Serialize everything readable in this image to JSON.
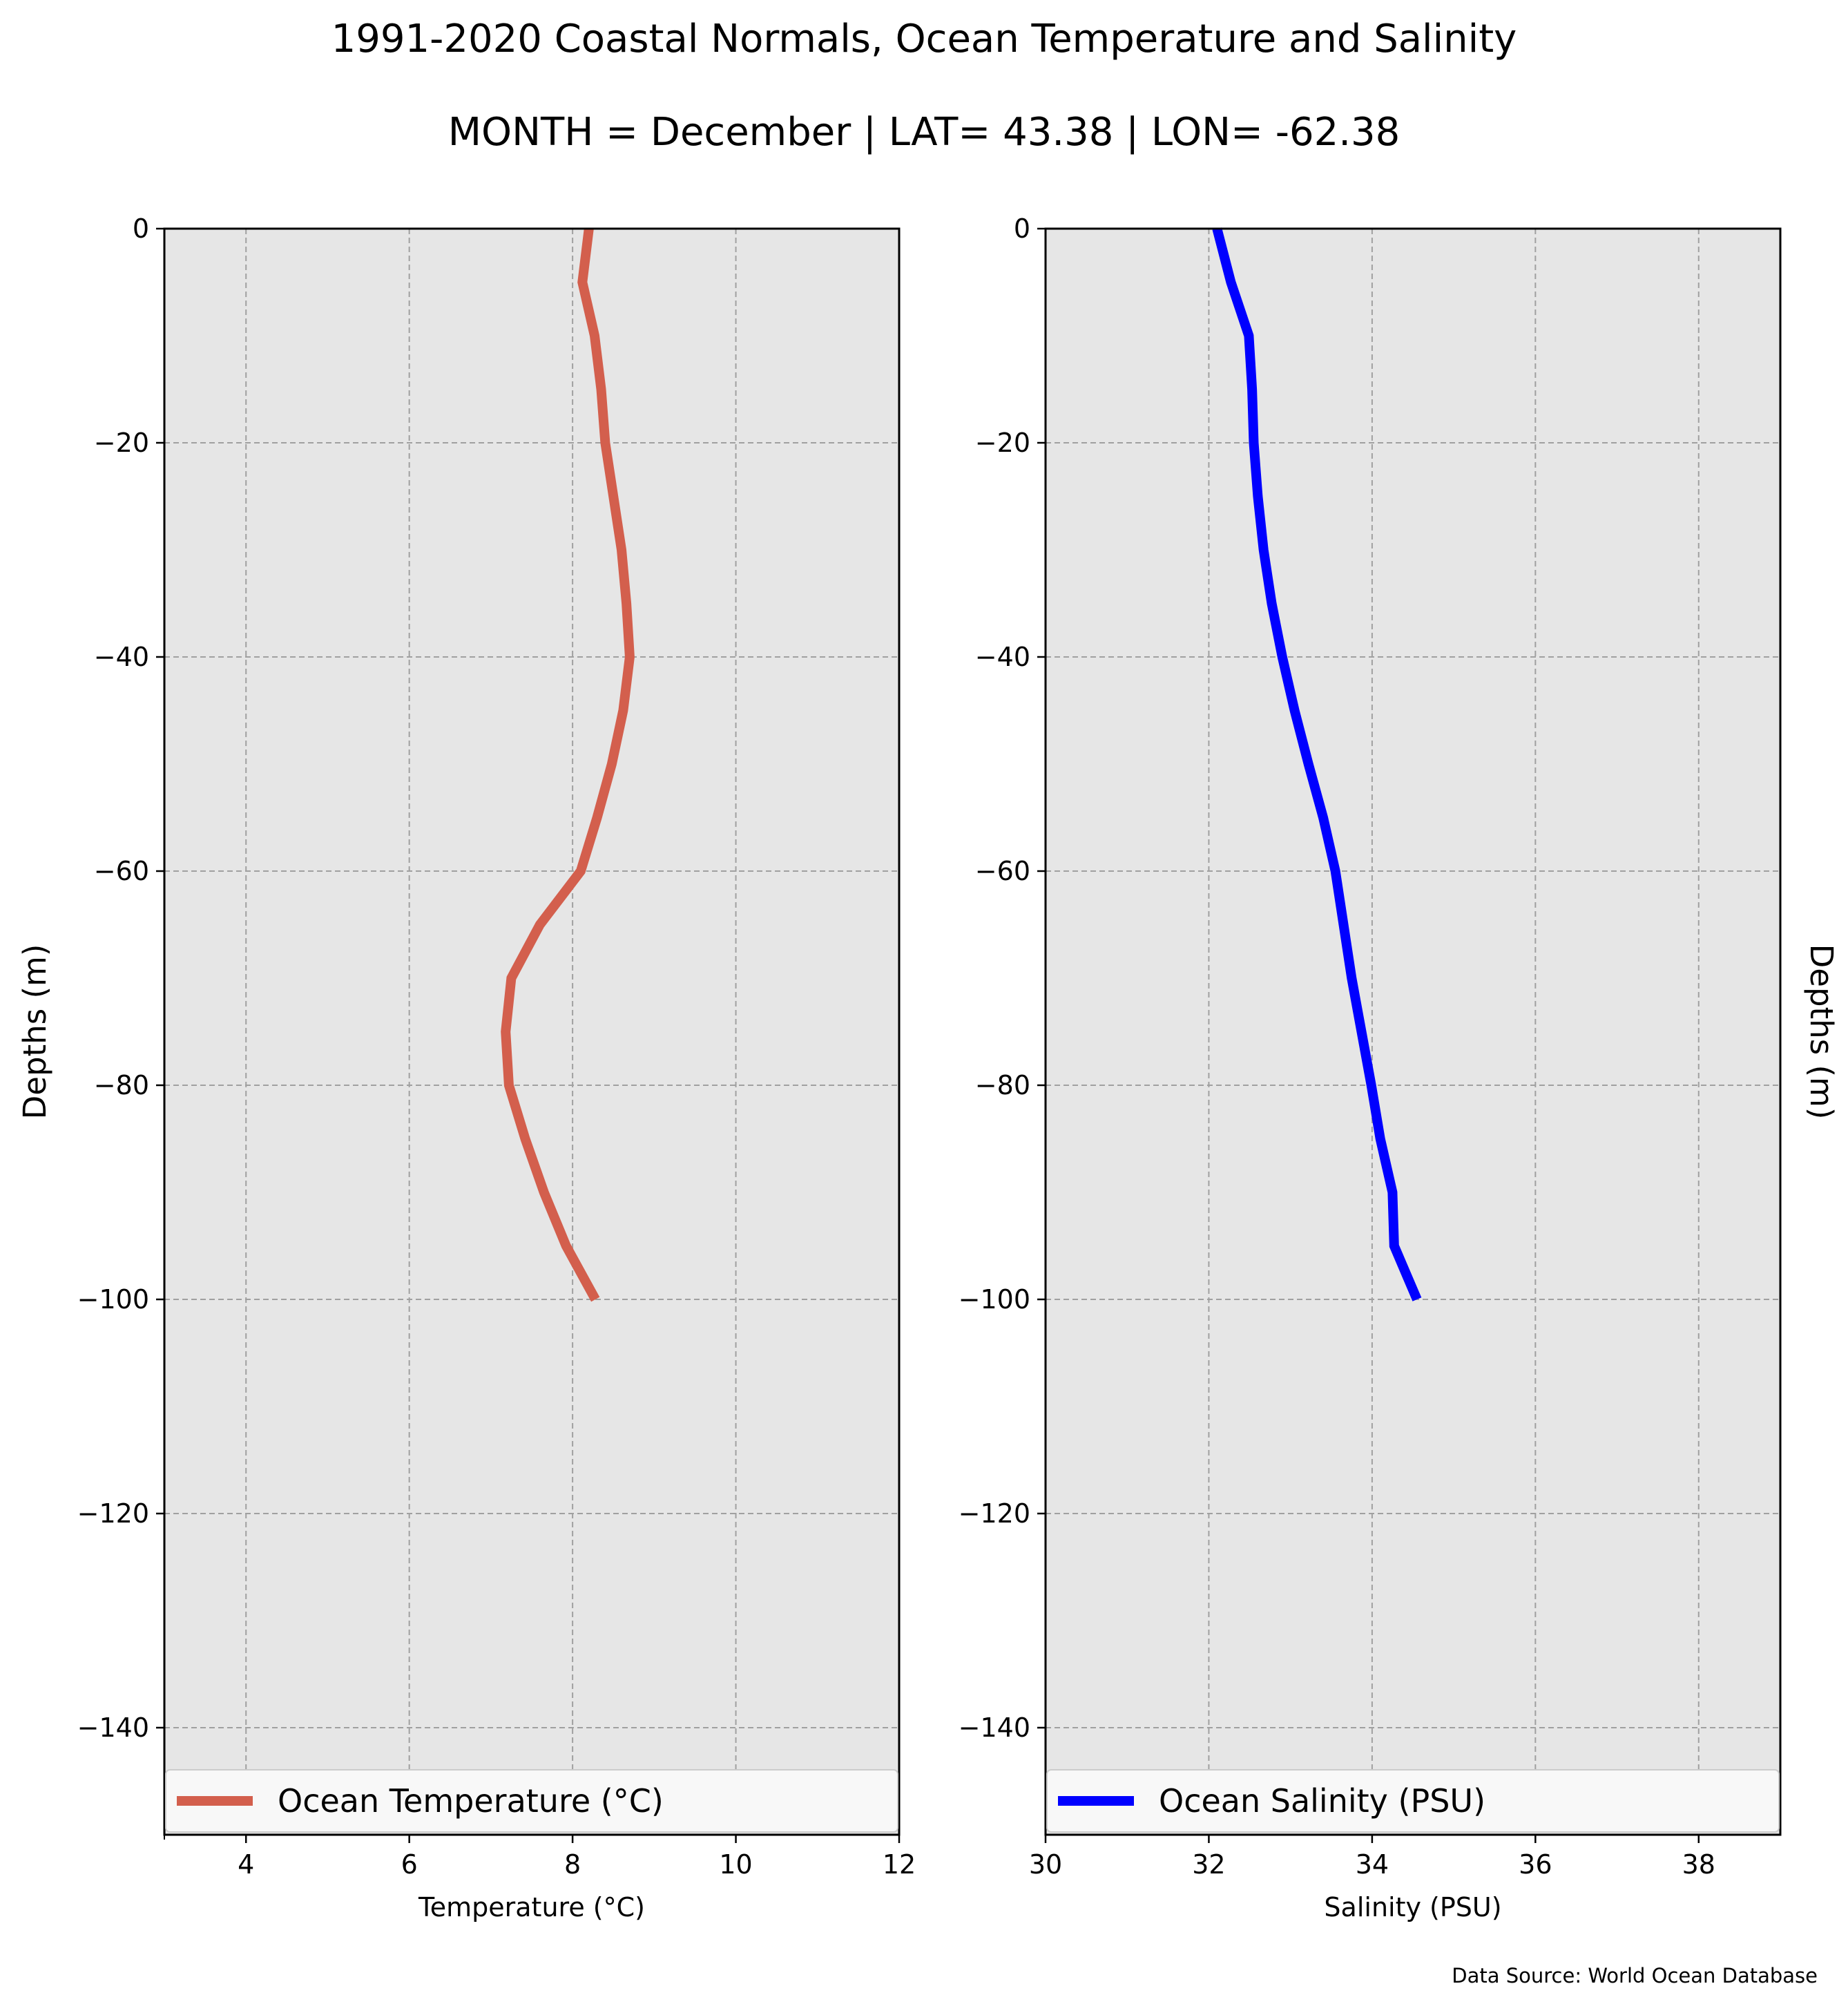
{
  "figure": {
    "title_line1": "1991-2020 Coastal Normals, Ocean Temperature and Salinity",
    "title_line2": "MONTH = December | LAT= 43.38 | LON= -62.38",
    "source": "Data Source: World Ocean Database"
  },
  "chart_data": [
    {
      "type": "line",
      "xlabel": "Temperature ($^\\circ$C)",
      "xlabel_display": "Temperature (°C)",
      "ylabel": "Depths (m)",
      "xlim": [
        3,
        12
      ],
      "ylim": [
        -150,
        0
      ],
      "xticks": [
        4,
        6,
        8,
        10,
        12
      ],
      "yticks": [
        0,
        -20,
        -40,
        -60,
        -80,
        -100,
        -120,
        -140
      ],
      "grid": true,
      "legend_position": "bottom",
      "background": "#e6e6e6",
      "series": [
        {
          "name": "Ocean Temperature (°C)",
          "color": "#d35f4d",
          "x": [
            8.2,
            8.12,
            8.27,
            8.35,
            8.4,
            8.5,
            8.6,
            8.66,
            8.7,
            8.62,
            8.48,
            8.3,
            8.1,
            7.6,
            7.25,
            7.18,
            7.22,
            7.42,
            7.65,
            7.92,
            8.28
          ],
          "y": [
            0,
            -5,
            -10,
            -15,
            -20,
            -25,
            -30,
            -35,
            -40,
            -45,
            -50,
            -55,
            -60,
            -65,
            -70,
            -75,
            -80,
            -85,
            -90,
            -95,
            -100
          ]
        }
      ]
    },
    {
      "type": "line",
      "xlabel": "Salinity (PSU)",
      "ylabel": "Depths (m)",
      "ylabel_side": "right",
      "xlim": [
        30,
        39
      ],
      "ylim": [
        -150,
        0
      ],
      "xticks": [
        30,
        32,
        34,
        36,
        38
      ],
      "yticks": [
        0,
        -20,
        -40,
        -60,
        -80,
        -100,
        -120,
        -140
      ],
      "grid": true,
      "legend_position": "bottom",
      "background": "#e6e6e6",
      "series": [
        {
          "name": "Ocean Salinity (PSU)",
          "color": "#0000ff",
          "x": [
            32.1,
            32.27,
            32.49,
            32.53,
            32.55,
            32.6,
            32.67,
            32.77,
            32.9,
            33.05,
            33.22,
            33.4,
            33.55,
            33.65,
            33.75,
            33.87,
            33.99,
            34.1,
            34.25,
            34.27,
            34.55
          ],
          "y": [
            0,
            -5,
            -10,
            -15,
            -20,
            -25,
            -30,
            -35,
            -40,
            -45,
            -50,
            -55,
            -60,
            -65,
            -70,
            -75,
            -80,
            -85,
            -90,
            -95,
            -100
          ]
        }
      ]
    }
  ]
}
